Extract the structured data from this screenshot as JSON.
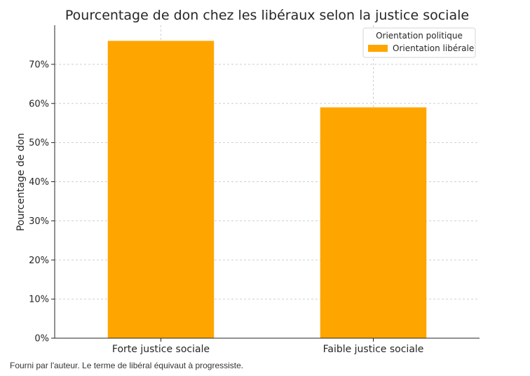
{
  "chart_data": {
    "type": "bar",
    "title": "Pourcentage de don chez les libéraux selon la justice sociale",
    "xlabel": "",
    "ylabel": "Pourcentage de don",
    "categories": [
      "Forte justice sociale",
      "Faible justice sociale"
    ],
    "series": [
      {
        "name": "Orientation libérale",
        "values": [
          76,
          59
        ],
        "color": "#ffa500"
      }
    ],
    "ylim": [
      0,
      80
    ],
    "yticks": [
      0,
      10,
      20,
      30,
      40,
      50,
      60,
      70
    ],
    "ytick_labels": [
      "0%",
      "10%",
      "20%",
      "30%",
      "40%",
      "50%",
      "60%",
      "70%"
    ],
    "grid": true,
    "legend": {
      "title": "Orientation politique",
      "placement": "top-right"
    }
  },
  "caption": "Fourni par l'auteur. Le terme de libéral équivaut à progressiste."
}
